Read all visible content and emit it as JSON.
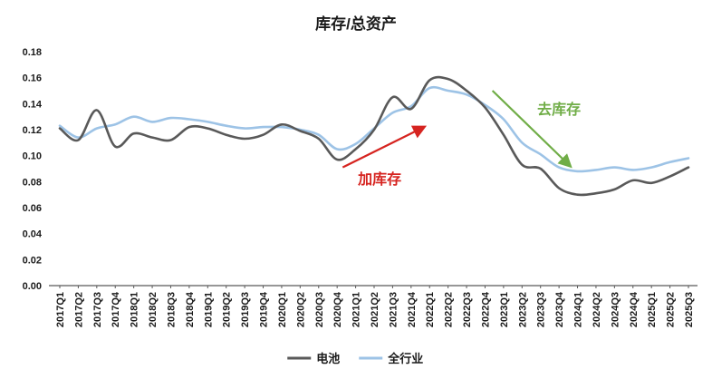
{
  "title": "库存/总资产",
  "chart_data": {
    "type": "line",
    "title": "库存/总资产",
    "categories": [
      "2017Q1",
      "2017Q2",
      "2017Q3",
      "2017Q4",
      "2018Q1",
      "2018Q2",
      "2018Q3",
      "2018Q4",
      "2019Q1",
      "2019Q2",
      "2019Q3",
      "2019Q4",
      "2020Q1",
      "2020Q2",
      "2020Q3",
      "2020Q4",
      "2021Q1",
      "2021Q2",
      "2021Q3",
      "2021Q4",
      "2022Q1",
      "2022Q2",
      "2022Q3",
      "2022Q4",
      "2023Q1",
      "2023Q2",
      "2023Q3",
      "2023Q4",
      "2024Q1",
      "2024Q2",
      "2024Q3",
      "2024Q4",
      "2025Q1",
      "2025Q2",
      "2025Q3"
    ],
    "series": [
      {
        "name": "电池",
        "color": "#595959",
        "values": [
          0.121,
          0.112,
          0.135,
          0.107,
          0.117,
          0.114,
          0.112,
          0.122,
          0.121,
          0.116,
          0.113,
          0.116,
          0.124,
          0.119,
          0.113,
          0.097,
          0.105,
          0.12,
          0.145,
          0.136,
          0.158,
          0.159,
          0.15,
          0.137,
          0.116,
          0.093,
          0.09,
          0.075,
          0.07,
          0.071,
          0.074,
          0.081,
          0.079,
          0.084,
          0.091
        ]
      },
      {
        "name": "全行业",
        "color": "#9DC3E6",
        "values": [
          0.123,
          0.114,
          0.121,
          0.124,
          0.13,
          0.126,
          0.129,
          0.128,
          0.126,
          0.123,
          0.121,
          0.122,
          0.122,
          0.12,
          0.116,
          0.105,
          0.109,
          0.121,
          0.133,
          0.138,
          0.152,
          0.15,
          0.147,
          0.139,
          0.128,
          0.11,
          0.101,
          0.091,
          0.088,
          0.089,
          0.091,
          0.089,
          0.091,
          0.095,
          0.098
        ]
      }
    ],
    "ylim": [
      0,
      0.18
    ],
    "ytick_step": 0.02,
    "ytick_labels": [
      "0.00",
      "0.02",
      "0.04",
      "0.06",
      "0.08",
      "0.10",
      "0.12",
      "0.14",
      "0.16",
      "0.18"
    ],
    "grid": false,
    "legend_position": "bottom",
    "annotations": [
      {
        "id": "add-inventory",
        "text": "加库存",
        "color": "#D62420",
        "label_xi": 17.3,
        "label_v": 0.078,
        "arrow": {
          "x1_i": 15.3,
          "v1": 0.091,
          "x2_i": 19.7,
          "v2": 0.122
        }
      },
      {
        "id": "destock",
        "text": "去库存",
        "color": "#70AD47",
        "label_xi": 27.0,
        "label_v": 0.132,
        "arrow": {
          "x1_i": 23.4,
          "v1": 0.15,
          "x2_i": 27.6,
          "v2": 0.092
        }
      }
    ]
  }
}
